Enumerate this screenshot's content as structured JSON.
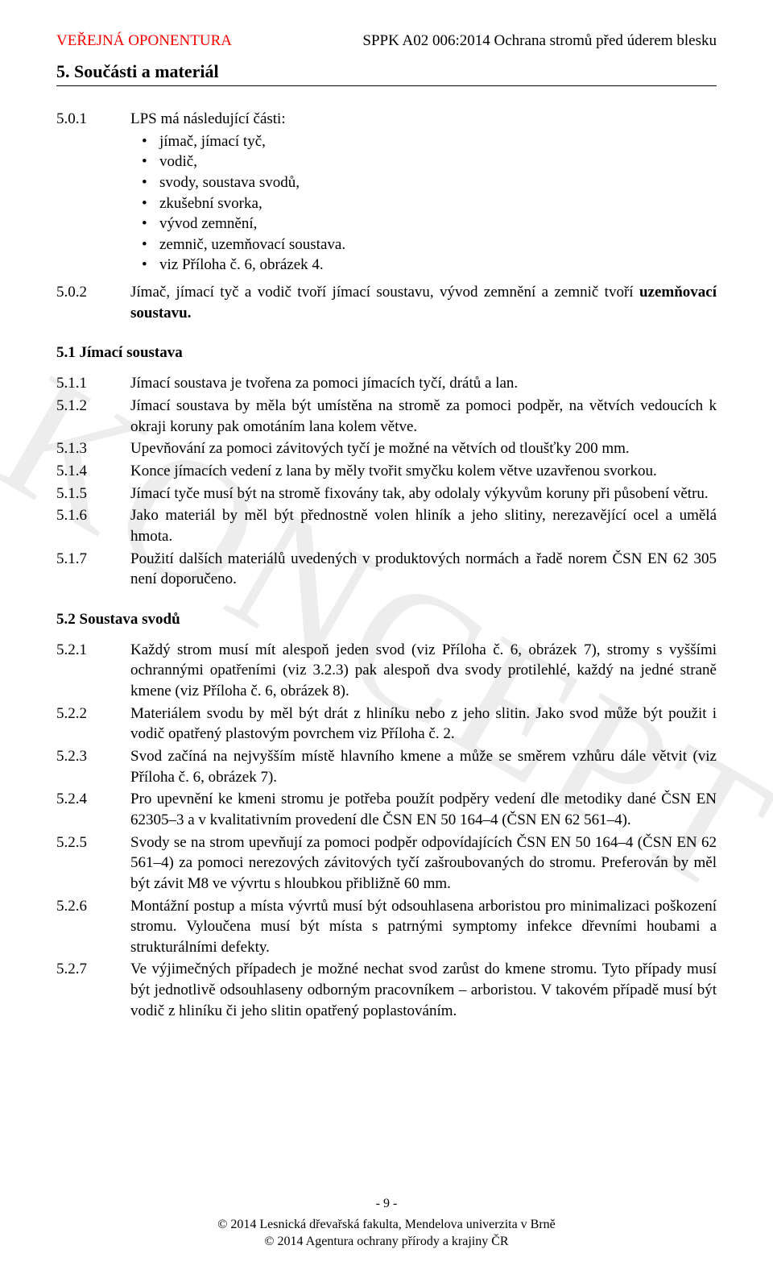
{
  "header": {
    "left": "VEŘEJNÁ OPONENTURA",
    "right": "SPPK A02 006:2014 Ochrana stromů před úderem blesku"
  },
  "watermark": "KONCEPT",
  "section5": {
    "title": "5. Součásti a materiál",
    "items": [
      {
        "num": "5.0.1",
        "lead": "LPS má následující části:",
        "bullets": [
          "jímač, jímací tyč,",
          "vodič,",
          "svody, soustava svodů,",
          "zkušební svorka,",
          "vývod zemnění,",
          "zemnič, uzemňovací soustava.",
          "viz Příloha č. 6, obrázek 4."
        ]
      },
      {
        "num": "5.0.2",
        "text_pre": "Jímač, jímací tyč a vodič tvoří jímací soustavu, vývod zemnění a zemnič tvoří ",
        "text_bold": "uzemňovací soustavu.",
        "text_post": ""
      }
    ]
  },
  "section51": {
    "title": "5.1 Jímací soustava",
    "items": [
      {
        "num": "5.1.1",
        "text": "Jímací soustava je tvořena za pomoci jímacích tyčí, drátů a lan."
      },
      {
        "num": "5.1.2",
        "text": "Jímací soustava by měla být umístěna na stromě za pomoci podpěr, na větvích vedoucích k okraji koruny pak omotáním lana kolem větve."
      },
      {
        "num": "5.1.3",
        "text": "Upevňování za pomoci závitových tyčí je možné na větvích od tloušťky 200 mm."
      },
      {
        "num": "5.1.4",
        "text": "Konce jímacích vedení z lana by měly tvořit smyčku kolem větve uzavřenou svorkou."
      },
      {
        "num": "5.1.5",
        "text": "Jímací tyče musí být na stromě fixovány tak, aby odolaly výkyvům koruny při působení větru."
      },
      {
        "num": "5.1.6",
        "text": "Jako materiál by měl být přednostně volen hliník a jeho slitiny, nerezavějící ocel a umělá hmota."
      },
      {
        "num": "5.1.7",
        "text": "Použití dalších materiálů uvedených v produktových normách a řadě norem ČSN EN 62 305 není doporučeno."
      }
    ]
  },
  "section52": {
    "title": "5.2 Soustava svodů",
    "items": [
      {
        "num": "5.2.1",
        "text": "Každý strom musí mít alespoň jeden svod (viz Příloha č. 6, obrázek 7), stromy s vyššími ochrannými opatřeními (viz 3.2.3) pak alespoň dva svody protilehlé, každý na jedné straně kmene (viz Příloha č. 6, obrázek 8)."
      },
      {
        "num": "5.2.2",
        "text": "Materiálem svodu by měl být drát z hliníku nebo z jeho slitin. Jako svod může být použit i vodič opatřený plastovým povrchem viz Příloha č. 2."
      },
      {
        "num": "5.2.3",
        "text": "Svod začíná na nejvyšším místě hlavního kmene a může se směrem vzhůru dále větvit (viz Příloha č. 6, obrázek 7)."
      },
      {
        "num": "5.2.4",
        "text": "Pro upevnění ke kmeni stromu je potřeba použít podpěry vedení dle metodiky dané ČSN EN 62305–3 a v kvalitativním provedení dle ČSN EN 50 164–4 (ČSN EN 62 561–4)."
      },
      {
        "num": "5.2.5",
        "text": "Svody se na strom upevňují za pomoci podpěr odpovídajících ČSN EN 50 164–4 (ČSN EN 62 561–4) za pomoci nerezových závitových tyčí zašroubovaných do stromu. Preferován by měl být závit M8 ve vývrtu s hloubkou přibližně 60 mm."
      },
      {
        "num": "5.2.6",
        "text": "Montážní postup a místa vývrtů musí být odsouhlasena arboristou pro minimalizaci poškození stromu. Vyloučena musí být místa s patrnými symptomy infekce dřevními houbami a strukturálními defekty."
      },
      {
        "num": "5.2.7",
        "text": "Ve výjimečných případech je možné nechat svod zarůst do kmene stromu. Tyto případy musí být jednotlivě odsouhlaseny odborným pracovníkem – arboristou. V takovém případě musí být vodič z hliníku či jeho slitin opatřený poplastováním."
      }
    ]
  },
  "footer": {
    "page": "- 9 -",
    "line1": "© 2014  Lesnická dřevařská fakulta, Mendelova univerzita v Brně",
    "line2": "© 2014  Agentura ochrany přírody a krajiny ČR"
  }
}
